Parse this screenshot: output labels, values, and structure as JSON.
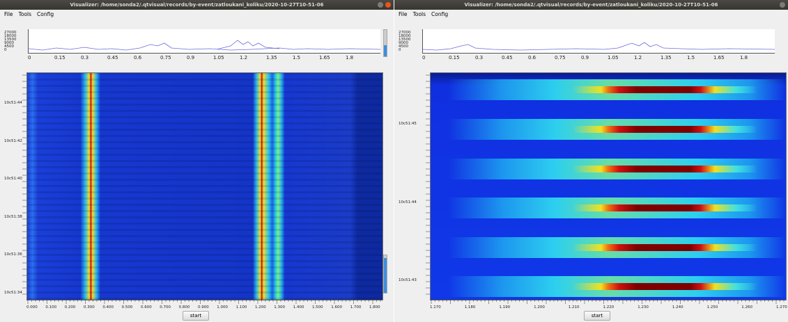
{
  "windows": [
    {
      "title": "Visualizer: /home/sonda2/.qtvisual/records/by-event/zatloukani_koliku/2020-10-27T10-51-06",
      "menu": [
        "File",
        "Tools",
        "Config"
      ],
      "overview": {
        "yticks": [
          "27000",
          "18000",
          "13500",
          "9000",
          "4500",
          "0"
        ],
        "xticks": [
          "0",
          "0.15",
          "0.3",
          "0.45",
          "0.6",
          "0.75",
          "0.9",
          "1.05",
          "1.2",
          "1.35",
          "1.5",
          "1.65",
          "1.8"
        ]
      },
      "spectrogram": {
        "time_labels": [
          "10c51:44",
          "10c51:42",
          "10c51:40",
          "10c51:38",
          "10c51:36",
          "10c51:34"
        ],
        "freq_labels": [
          "0.000",
          "0.100",
          "0.200",
          "0.300",
          "0.400",
          "0.500",
          "0.600",
          "0.700",
          "0.800",
          "0.900",
          "1.000",
          "1.100",
          "1.200",
          "1.300",
          "1.400",
          "1.500",
          "1.600",
          "1.700",
          "1.800"
        ]
      },
      "button": "start"
    },
    {
      "title": "Visualizer: /home/sonda2/.qtvisual/records/by-event/zatloukani_koliku/2020-10-27T10-51-06",
      "menu": [
        "File",
        "Tools",
        "Config"
      ],
      "overview": {
        "yticks": [
          "27000",
          "18000",
          "13500",
          "9000",
          "4500",
          "0"
        ],
        "xticks": [
          "0",
          "0.15",
          "0.3",
          "0.45",
          "0.6",
          "0.75",
          "0.9",
          "1.05",
          "1.2",
          "1.35",
          "1.5",
          "1.65",
          "1.8"
        ]
      },
      "spectrogram": {
        "time_labels": [
          "10c51:45",
          "10c51:44",
          "10c51:43"
        ],
        "freq_labels": [
          "1.170",
          "1.180",
          "1.190",
          "1.200",
          "1.210",
          "1.220",
          "1.230",
          "1.240",
          "1.250",
          "1.260",
          "1.270"
        ]
      },
      "button": "start"
    }
  ]
}
